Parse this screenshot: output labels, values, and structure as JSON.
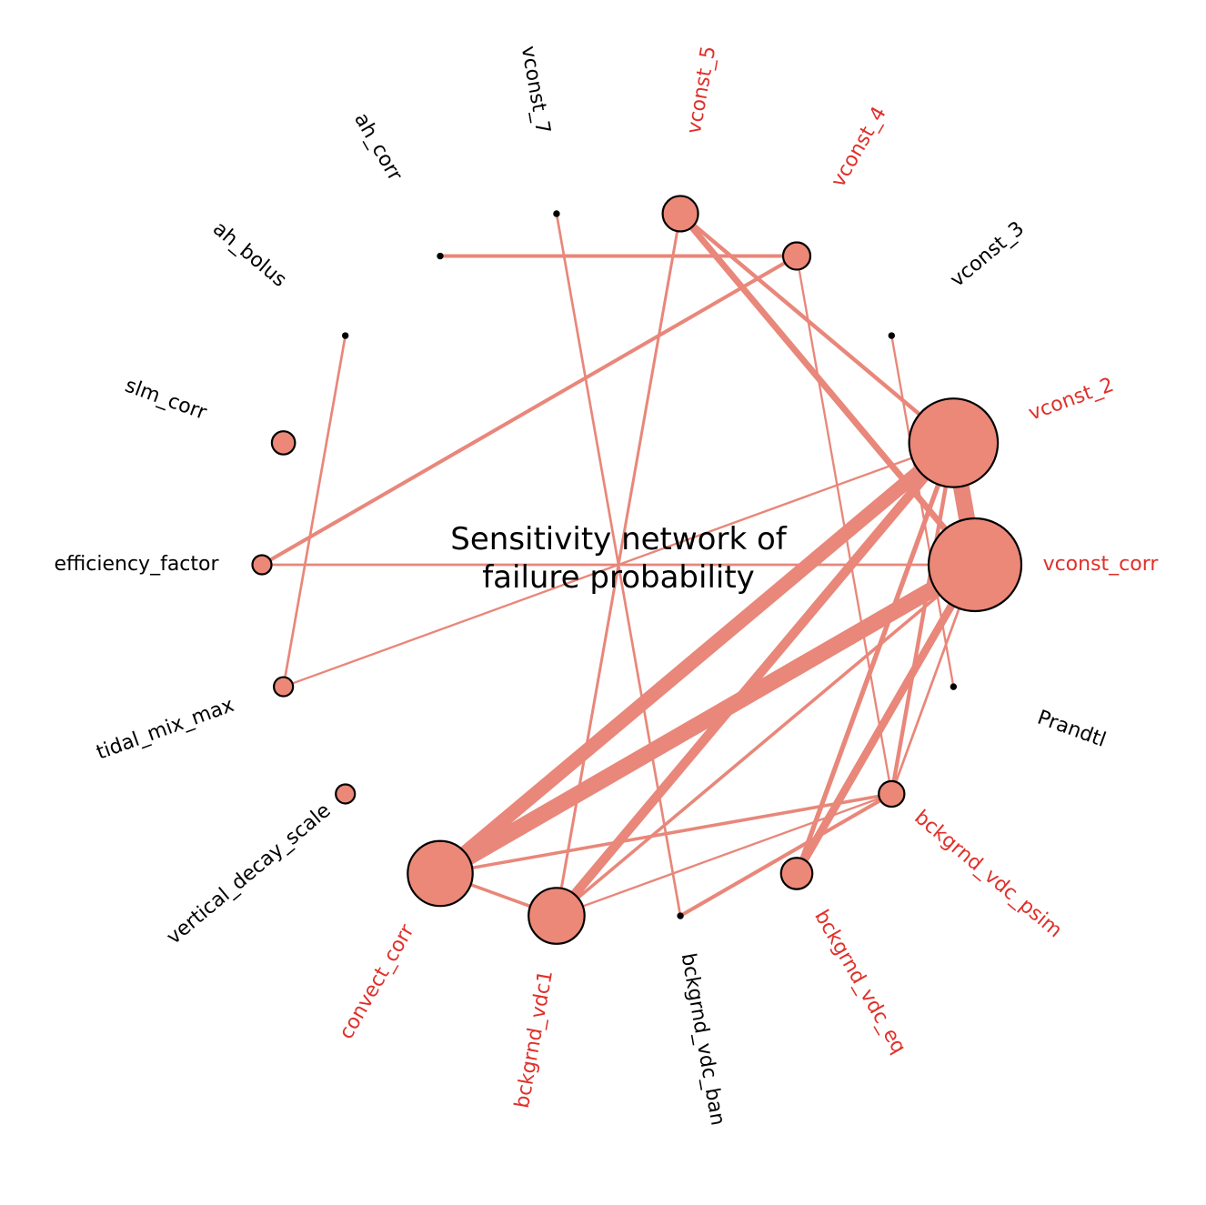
{
  "title": {
    "line1": "Sensitivity network of",
    "line2": "failure probability"
  },
  "colors": {
    "edge": "#e8877a",
    "node_fill": "#ec8878",
    "node_stroke": "#000000",
    "label_significant": "#e0302a",
    "label_normal": "#000000"
  },
  "nodes": [
    {
      "id": "vconst_corr",
      "label": "vconst_corr",
      "significant": true,
      "size": 1.0
    },
    {
      "id": "vconst_2",
      "label": "vconst_2",
      "significant": true,
      "size": 0.95
    },
    {
      "id": "vconst_3",
      "label": "vconst_3",
      "significant": false,
      "size": 0.0
    },
    {
      "id": "vconst_4",
      "label": "vconst_4",
      "significant": true,
      "size": 0.2
    },
    {
      "id": "vconst_5",
      "label": "vconst_5",
      "significant": true,
      "size": 0.3
    },
    {
      "id": "vconst_7",
      "label": "vconst_7",
      "significant": false,
      "size": 0.0
    },
    {
      "id": "ah_corr",
      "label": "ah_corr",
      "significant": false,
      "size": 0.0
    },
    {
      "id": "ah_bolus",
      "label": "ah_bolus",
      "significant": false,
      "size": 0.0
    },
    {
      "id": "slm_corr",
      "label": "slm_corr",
      "significant": false,
      "size": 0.15
    },
    {
      "id": "efficiency_factor",
      "label": "efficiency_factor",
      "significant": false,
      "size": 0.1
    },
    {
      "id": "tidal_mix_max",
      "label": "tidal_mix_max",
      "significant": false,
      "size": 0.1
    },
    {
      "id": "vertical_decay_scale",
      "label": "vertical_decay_scale",
      "significant": false,
      "size": 0.1
    },
    {
      "id": "convect_corr",
      "label": "convect_corr",
      "significant": true,
      "size": 0.66
    },
    {
      "id": "bckgrnd_vdc1",
      "label": "bckgrnd_vdc1",
      "significant": true,
      "size": 0.55
    },
    {
      "id": "bckgrnd_vdc_ban",
      "label": "bckgrnd_vdc_ban",
      "significant": false,
      "size": 0.0
    },
    {
      "id": "bckgrnd_vdc_eq",
      "label": "bckgrnd_vdc_eq",
      "significant": true,
      "size": 0.25
    },
    {
      "id": "bckgrnd_vdc_psim",
      "label": "bckgrnd_vdc_psim",
      "significant": true,
      "size": 0.18
    },
    {
      "id": "Prandtl",
      "label": "Prandtl",
      "significant": false,
      "size": 0.0
    }
  ],
  "edges": [
    {
      "source": "vconst_corr",
      "target": "vconst_2",
      "weight": 1.0
    },
    {
      "source": "vconst_corr",
      "target": "convect_corr",
      "weight": 1.0
    },
    {
      "source": "vconst_2",
      "target": "convect_corr",
      "weight": 0.85
    },
    {
      "source": "vconst_2",
      "target": "bckgrnd_vdc1",
      "weight": 0.55
    },
    {
      "source": "vconst_corr",
      "target": "bckgrnd_vdc_eq",
      "weight": 0.45
    },
    {
      "source": "vconst_corr",
      "target": "vconst_5",
      "weight": 0.35
    },
    {
      "source": "vconst_2",
      "target": "vconst_5",
      "weight": 0.2
    },
    {
      "source": "vconst_2",
      "target": "bckgrnd_vdc_eq",
      "weight": 0.25
    },
    {
      "source": "vconst_2",
      "target": "bckgrnd_vdc_psim",
      "weight": 0.2
    },
    {
      "source": "vconst_corr",
      "target": "bckgrnd_vdc1",
      "weight": 0.15
    },
    {
      "source": "vconst_corr",
      "target": "efficiency_factor",
      "weight": 0.1
    },
    {
      "source": "vconst_corr",
      "target": "bckgrnd_vdc_psim",
      "weight": 0.1
    },
    {
      "source": "vconst_2",
      "target": "tidal_mix_max",
      "weight": 0.08
    },
    {
      "source": "vconst_4",
      "target": "efficiency_factor",
      "weight": 0.18
    },
    {
      "source": "vconst_4",
      "target": "ah_corr",
      "weight": 0.18
    },
    {
      "source": "vconst_4",
      "target": "bckgrnd_vdc_psim",
      "weight": 0.08
    },
    {
      "source": "vconst_3",
      "target": "Prandtl",
      "weight": 0.08
    },
    {
      "source": "vconst_5",
      "target": "bckgrnd_vdc1",
      "weight": 0.12
    },
    {
      "source": "vconst_7",
      "target": "bckgrnd_vdc_ban",
      "weight": 0.1
    },
    {
      "source": "ah_bolus",
      "target": "tidal_mix_max",
      "weight": 0.1
    },
    {
      "source": "convect_corr",
      "target": "bckgrnd_vdc_psim",
      "weight": 0.15
    },
    {
      "source": "convect_corr",
      "target": "bckgrnd_vdc1",
      "weight": 0.15
    },
    {
      "source": "bckgrnd_vdc1",
      "target": "bckgrnd_vdc_psim",
      "weight": 0.08
    },
    {
      "source": "bckgrnd_vdc_ban",
      "target": "bckgrnd_vdc_psim",
      "weight": 0.18
    }
  ]
}
